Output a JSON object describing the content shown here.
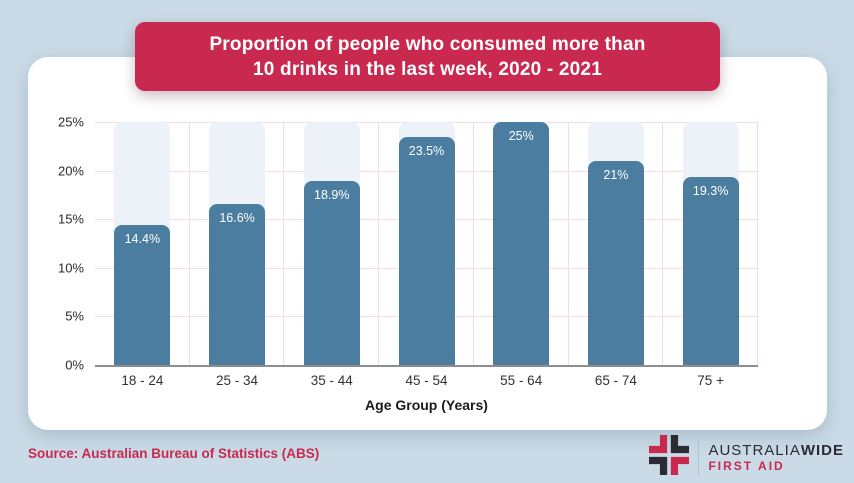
{
  "page": {
    "background": "#CADBE7"
  },
  "title_banner": {
    "line1": "Proportion of people who consumed more than",
    "line2": "10 drinks in the last week, 2020 - 2021",
    "background": "#C9284F",
    "text_color": "#FFFFFF"
  },
  "chart_data": {
    "type": "bar",
    "title": "Proportion of people who consumed more than 10 drinks in the last week, 2020 - 2021",
    "categories": [
      "18 - 24",
      "25 - 34",
      "35 - 44",
      "45 - 54",
      "55 - 64",
      "65 - 74",
      "75 +"
    ],
    "values": [
      14.4,
      16.6,
      18.9,
      23.5,
      25,
      21,
      19.3
    ],
    "value_labels": [
      "14.4%",
      "16.6%",
      "18.9%",
      "23.5%",
      "25%",
      "21%",
      "19.3%"
    ],
    "xlabel": "Age Group (Years)",
    "ylabel": "",
    "ylim": [
      0,
      25
    ],
    "ytick_step": 5,
    "ytick_labels": [
      "0%",
      "5%",
      "10%",
      "15%",
      "20%",
      "25%"
    ],
    "grid": true,
    "legend_position": "none",
    "bar_color": "#4B7DA1",
    "column_track_color": "#ECF2F8",
    "gridline_color": "#F6DCE1",
    "axis_line_color": "#8E8E8E",
    "data_label_color": "#FFFFFF"
  },
  "footer": {
    "source": "Source: Australian Bureau of Statistics (ABS)",
    "logo": {
      "name_regular": "AUSTRALIA",
      "name_bold": "WIDE",
      "subtitle": "FIRST AID",
      "icon": "cross-logo-icon",
      "red": "#C9284F",
      "dark": "#2B2B33"
    }
  }
}
